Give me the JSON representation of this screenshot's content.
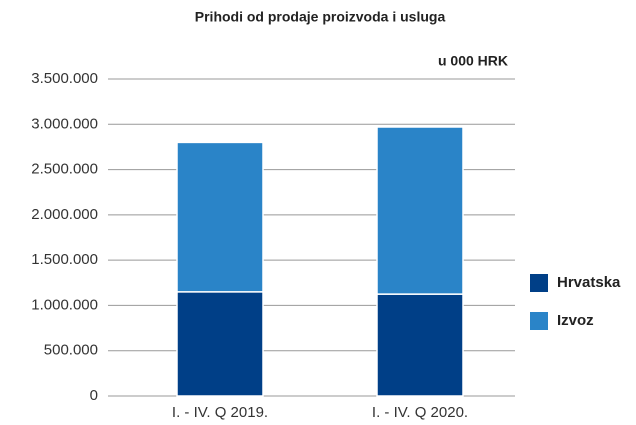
{
  "chart_data": {
    "type": "stacked_bar",
    "title": "Prihodi od prodaje proizvoda i usluga",
    "units": "u 000 HRK",
    "categories": [
      "I. - IV. Q 2019.",
      "I. - IV. Q 2020."
    ],
    "series": [
      {
        "name": "Hrvatska",
        "color": "#003f87",
        "values": [
          1150000,
          1125000
        ]
      },
      {
        "name": "Izvoz",
        "color": "#2a84c8",
        "values": [
          1650000,
          1845000
        ]
      }
    ],
    "ylim": [
      0,
      3500000
    ],
    "yticks": [
      0,
      {
        "value": 500000,
        "label": "500.000"
      },
      {
        "value": 1000000,
        "label": "1.000.000"
      },
      {
        "value": 1500000,
        "label": "1.500.000"
      },
      {
        "value": 2000000,
        "label": "2.000.000"
      },
      {
        "value": 2500000,
        "label": "2.500.000"
      },
      {
        "value": 3000000,
        "label": "3.000.000"
      },
      {
        "value": 3500000,
        "label": "3.500.000"
      }
    ],
    "grid": true,
    "legend": "right"
  }
}
